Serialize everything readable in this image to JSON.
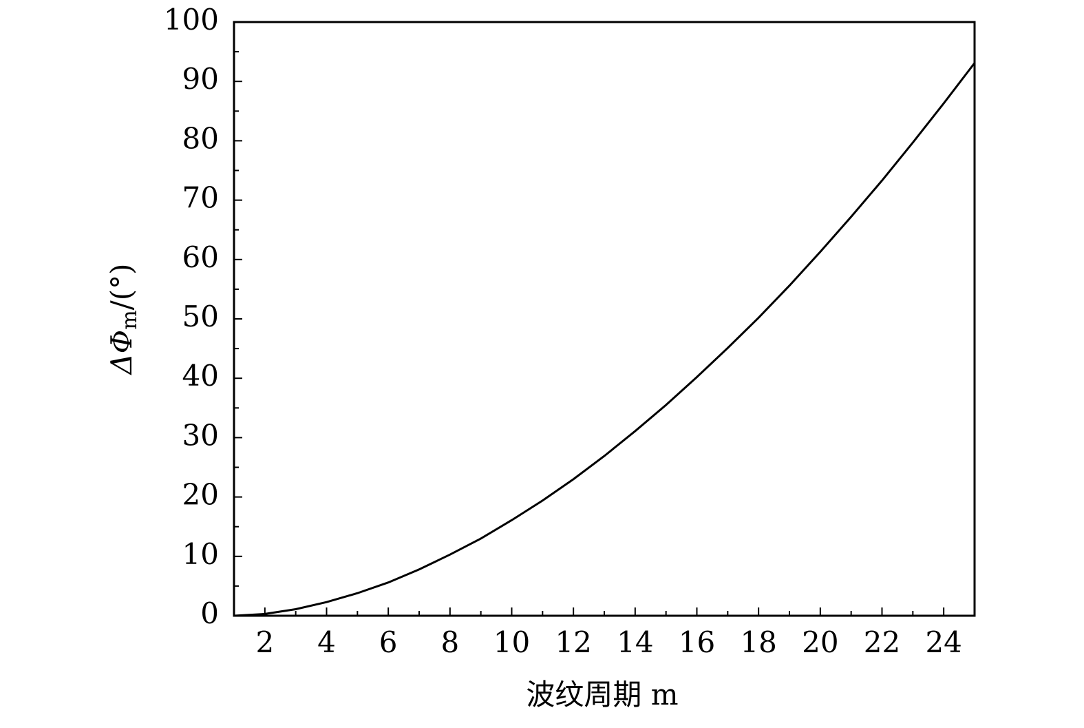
{
  "chart_data": {
    "type": "line",
    "x_label": "波纹周期 m",
    "y_label_main": "ΔΦ",
    "y_label_sub": "m",
    "y_label_unit": "/(°)",
    "x": [
      1,
      2,
      3,
      4,
      5,
      6,
      7,
      8,
      9,
      10,
      11,
      12,
      13,
      14,
      15,
      16,
      17,
      18,
      19,
      20,
      21,
      22,
      23,
      24,
      25
    ],
    "series": [
      {
        "name": "ΔΦm",
        "color": "#000000",
        "values": [
          0,
          0.3,
          1.1,
          2.3,
          3.8,
          5.6,
          7.8,
          10.3,
          13.0,
          16.1,
          19.4,
          23.0,
          26.9,
          31.1,
          35.5,
          40.2,
          45.1,
          50.2,
          55.6,
          61.3,
          67.2,
          73.3,
          79.7,
          86.3,
          93.1
        ]
      }
    ],
    "xlim": [
      1,
      25
    ],
    "xticks": [
      2,
      4,
      6,
      8,
      10,
      12,
      14,
      16,
      18,
      20,
      22,
      24
    ],
    "ylim": [
      0,
      100
    ],
    "yticks": [
      0,
      10,
      20,
      30,
      40,
      50,
      60,
      70,
      80,
      90,
      100
    ],
    "grid": false
  }
}
